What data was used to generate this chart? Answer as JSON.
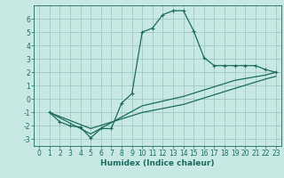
{
  "xlabel": "Humidex (Indice chaleur)",
  "bg_color": "#c8e8e4",
  "grid_color": "#a0c8c4",
  "line_color": "#1a6b60",
  "spine_color": "#1a6b60",
  "xlim": [
    -0.5,
    23.5
  ],
  "ylim": [
    -3.5,
    7.0
  ],
  "xticks": [
    0,
    1,
    2,
    3,
    4,
    5,
    6,
    7,
    8,
    9,
    10,
    11,
    12,
    13,
    14,
    15,
    16,
    17,
    18,
    19,
    20,
    21,
    22,
    23
  ],
  "yticks": [
    -3,
    -2,
    -1,
    0,
    1,
    2,
    3,
    4,
    5,
    6
  ],
  "curve1_x": [
    1,
    2,
    3,
    4,
    5,
    6,
    7,
    8,
    9,
    10,
    11,
    12,
    13,
    14,
    15,
    16,
    17,
    18,
    19,
    20,
    21,
    22,
    23
  ],
  "curve1_y": [
    -1.0,
    -1.7,
    -2.0,
    -2.1,
    -2.9,
    -2.2,
    -2.2,
    -0.3,
    0.4,
    5.0,
    5.3,
    6.3,
    6.6,
    6.6,
    5.1,
    3.1,
    2.5,
    2.5,
    2.5,
    2.5,
    2.5,
    2.2,
    2.0
  ],
  "curve2_x": [
    1,
    5,
    10,
    14,
    19,
    22,
    23
  ],
  "curve2_y": [
    -1.0,
    -2.6,
    -0.5,
    0.2,
    1.4,
    1.8,
    2.0
  ],
  "curve3_x": [
    1,
    5,
    10,
    14,
    19,
    22,
    23
  ],
  "curve3_y": [
    -1.0,
    -2.2,
    -1.0,
    -0.4,
    0.8,
    1.5,
    1.7
  ],
  "tick_fontsize": 5.5,
  "xlabel_fontsize": 6.5,
  "linewidth": 0.9,
  "markersize": 3.5
}
